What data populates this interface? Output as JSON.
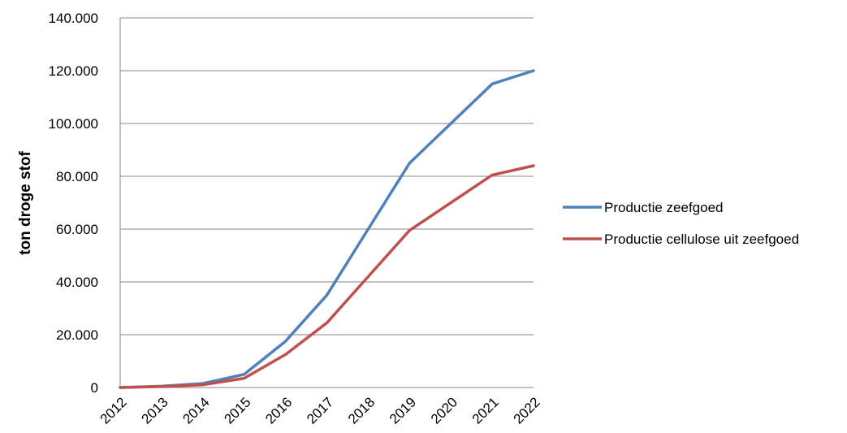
{
  "chart_data": {
    "type": "line",
    "title": "",
    "xlabel": "",
    "ylabel": "ton droge stof",
    "categories": [
      "2012",
      "2013",
      "2014",
      "2015",
      "2016",
      "2017",
      "2018",
      "2019",
      "2020",
      "2021",
      "2022"
    ],
    "y_ticks": [
      "0",
      "20.000",
      "40.000",
      "60.000",
      "80.000",
      "100.000",
      "120.000",
      "140.000"
    ],
    "ylim": [
      0,
      140000
    ],
    "grid": true,
    "legend_position": "right",
    "series": [
      {
        "name": "Productie zeefgoed",
        "color": "#4f81bd",
        "values": [
          0,
          500,
          1500,
          5000,
          17500,
          35000,
          60000,
          85000,
          100000,
          115000,
          120000
        ]
      },
      {
        "name": "Productie cellulose uit zeefgoed",
        "color": "#c0504d",
        "values": [
          0,
          350,
          1050,
          3500,
          12500,
          24500,
          42000,
          59500,
          70000,
          80500,
          84000
        ]
      }
    ]
  }
}
